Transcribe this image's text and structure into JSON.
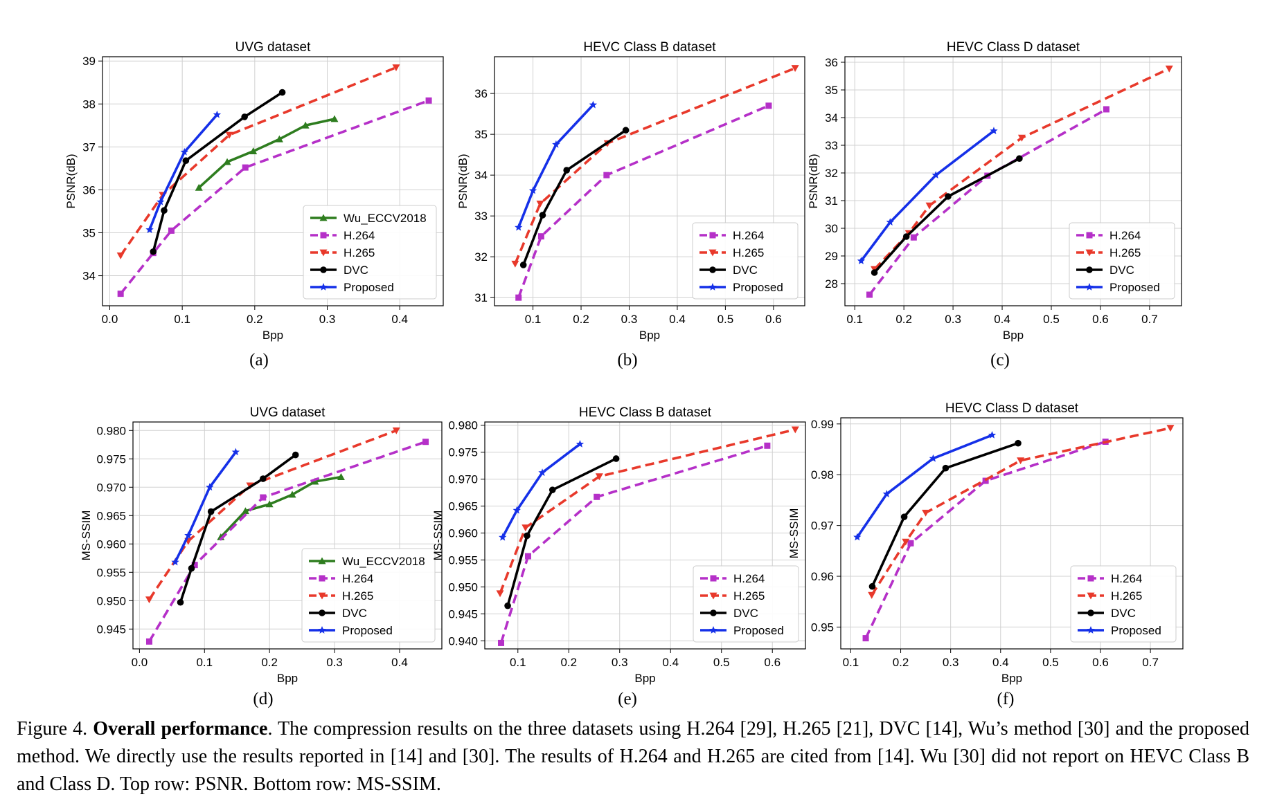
{
  "chart_data": [
    {
      "type": "line",
      "panel_label": "(a)",
      "title": "UVG dataset",
      "xlabel": "Bpp",
      "ylabel": "PSNR(dB)",
      "xlim": [
        -0.01,
        0.46
      ],
      "ylim": [
        33.3,
        39.1
      ],
      "xticks": [
        0.0,
        0.1,
        0.2,
        0.3,
        0.4
      ],
      "xtick_labels": [
        "0.0",
        "0.1",
        "0.2",
        "0.3",
        "0.4"
      ],
      "yticks": [
        34,
        35,
        36,
        37,
        38,
        39
      ],
      "ytick_labels": [
        "34",
        "35",
        "36",
        "37",
        "38",
        "39"
      ],
      "grid": true,
      "legend_position": "bottom-right",
      "series": [
        {
          "name": "Wu_ECCV2018",
          "color": "#2e7d1f",
          "marker": "triangle-up",
          "dash": "solid",
          "x": [
            0.123,
            0.162,
            0.198,
            0.234,
            0.27,
            0.31
          ],
          "y": [
            36.05,
            36.65,
            36.9,
            37.18,
            37.5,
            37.65
          ]
        },
        {
          "name": "H.264",
          "color": "#b530c8",
          "marker": "square",
          "dash": "dashed",
          "x": [
            0.015,
            0.06,
            0.085,
            0.187,
            0.44
          ],
          "y": [
            33.58,
            34.53,
            35.05,
            36.52,
            38.08
          ]
        },
        {
          "name": "H.265",
          "color": "#e8392b",
          "marker": "triangle-down",
          "dash": "dashed",
          "x": [
            0.015,
            0.073,
            0.165,
            0.395
          ],
          "y": [
            34.47,
            35.88,
            37.28,
            38.85
          ]
        },
        {
          "name": "DVC",
          "color": "#000000",
          "marker": "circle",
          "dash": "solid",
          "x": [
            0.06,
            0.075,
            0.105,
            0.186,
            0.238
          ],
          "y": [
            34.56,
            35.52,
            36.68,
            37.7,
            38.27
          ]
        },
        {
          "name": "Proposed",
          "color": "#1530e8",
          "marker": "star",
          "dash": "solid",
          "x": [
            0.055,
            0.07,
            0.103,
            0.148
          ],
          "y": [
            35.07,
            35.72,
            36.88,
            37.75
          ]
        }
      ]
    },
    {
      "type": "line",
      "panel_label": "(b)",
      "title": "HEVC Class B dataset",
      "xlabel": "Bpp",
      "ylabel": "PSNR(dB)",
      "xlim": [
        0.02,
        0.665
      ],
      "ylim": [
        30.8,
        36.9
      ],
      "xticks": [
        0.1,
        0.2,
        0.3,
        0.4,
        0.5,
        0.6
      ],
      "xtick_labels": [
        "0.1",
        "0.2",
        "0.3",
        "0.4",
        "0.5",
        "0.6"
      ],
      "yticks": [
        31,
        32,
        33,
        34,
        35,
        36
      ],
      "ytick_labels": [
        "31",
        "32",
        "33",
        "34",
        "35",
        "36"
      ],
      "grid": true,
      "legend_position": "bottom-right",
      "series": [
        {
          "name": "H.264",
          "color": "#b530c8",
          "marker": "square",
          "dash": "dashed",
          "x": [
            0.07,
            0.117,
            0.253,
            0.59
          ],
          "y": [
            31.0,
            32.5,
            34.0,
            35.7
          ]
        },
        {
          "name": "H.265",
          "color": "#e8392b",
          "marker": "triangle-down",
          "dash": "dashed",
          "x": [
            0.063,
            0.115,
            0.255,
            0.645
          ],
          "y": [
            31.83,
            33.3,
            34.78,
            36.62
          ]
        },
        {
          "name": "DVC",
          "color": "#000000",
          "marker": "circle",
          "dash": "solid",
          "x": [
            0.08,
            0.12,
            0.17,
            0.293
          ],
          "y": [
            31.8,
            33.02,
            34.12,
            35.1
          ]
        },
        {
          "name": "Proposed",
          "color": "#1530e8",
          "marker": "star",
          "dash": "solid",
          "x": [
            0.07,
            0.1,
            0.148,
            0.225
          ],
          "y": [
            32.72,
            33.62,
            34.75,
            35.72
          ]
        }
      ]
    },
    {
      "type": "line",
      "panel_label": "(c)",
      "title": "HEVC Class D dataset",
      "xlabel": "Bpp",
      "ylabel": "PSNR(dB)",
      "xlim": [
        0.08,
        0.765
      ],
      "ylim": [
        27.2,
        36.2
      ],
      "xticks": [
        0.1,
        0.2,
        0.3,
        0.4,
        0.5,
        0.6,
        0.7
      ],
      "xtick_labels": [
        "0.1",
        "0.2",
        "0.3",
        "0.4",
        "0.5",
        "0.6",
        "0.7"
      ],
      "yticks": [
        28,
        29,
        30,
        31,
        32,
        33,
        34,
        35,
        36
      ],
      "ytick_labels": [
        "28",
        "29",
        "30",
        "31",
        "32",
        "33",
        "34",
        "35",
        "36"
      ],
      "grid": true,
      "legend_position": "bottom-right",
      "series": [
        {
          "name": "H.264",
          "color": "#b530c8",
          "marker": "square",
          "dash": "dashed",
          "x": [
            0.13,
            0.22,
            0.37,
            0.612
          ],
          "y": [
            27.6,
            29.67,
            31.9,
            34.3
          ]
        },
        {
          "name": "H.265",
          "color": "#e8392b",
          "marker": "triangle-down",
          "dash": "dashed",
          "x": [
            0.14,
            0.21,
            0.252,
            0.44,
            0.74
          ],
          "y": [
            28.52,
            29.82,
            30.82,
            33.27,
            35.77
          ]
        },
        {
          "name": "DVC",
          "color": "#000000",
          "marker": "circle",
          "dash": "solid",
          "x": [
            0.14,
            0.205,
            0.29,
            0.435
          ],
          "y": [
            28.4,
            29.7,
            31.15,
            32.52
          ]
        },
        {
          "name": "Proposed",
          "color": "#1530e8",
          "marker": "star",
          "dash": "solid",
          "x": [
            0.113,
            0.172,
            0.265,
            0.383
          ],
          "y": [
            28.82,
            30.22,
            31.92,
            33.52
          ]
        }
      ]
    },
    {
      "type": "line",
      "panel_label": "(d)",
      "title": "UVG dataset",
      "xlabel": "Bpp",
      "ylabel": "MS-SSIM",
      "xlim": [
        -0.01,
        0.465
      ],
      "ylim": [
        0.9415,
        0.9815
      ],
      "xticks": [
        0.0,
        0.1,
        0.2,
        0.3,
        0.4
      ],
      "xtick_labels": [
        "0.0",
        "0.1",
        "0.2",
        "0.3",
        "0.4"
      ],
      "yticks": [
        0.945,
        0.95,
        0.955,
        0.96,
        0.965,
        0.97,
        0.975,
        0.98
      ],
      "ytick_labels": [
        "0.945",
        "0.950",
        "0.955",
        "0.960",
        "0.965",
        "0.970",
        "0.975",
        "0.980"
      ],
      "grid": true,
      "legend_position": "bottom-right",
      "series": [
        {
          "name": "Wu_ECCV2018",
          "color": "#2e7d1f",
          "marker": "triangle-up",
          "dash": "solid",
          "x": [
            0.125,
            0.163,
            0.2,
            0.235,
            0.27,
            0.31
          ],
          "y": [
            0.9612,
            0.9658,
            0.967,
            0.9687,
            0.971,
            0.9718
          ]
        },
        {
          "name": "H.264",
          "color": "#b530c8",
          "marker": "square",
          "dash": "dashed",
          "x": [
            0.015,
            0.085,
            0.19,
            0.44
          ],
          "y": [
            0.9428,
            0.9563,
            0.9682,
            0.978
          ]
        },
        {
          "name": "H.265",
          "color": "#e8392b",
          "marker": "triangle-down",
          "dash": "dashed",
          "x": [
            0.015,
            0.075,
            0.17,
            0.395
          ],
          "y": [
            0.9502,
            0.9605,
            0.9703,
            0.98
          ]
        },
        {
          "name": "DVC",
          "color": "#000000",
          "marker": "circle",
          "dash": "solid",
          "x": [
            0.063,
            0.08,
            0.11,
            0.19,
            0.24
          ],
          "y": [
            0.9497,
            0.9557,
            0.9657,
            0.9715,
            0.9757
          ]
        },
        {
          "name": "Proposed",
          "color": "#1530e8",
          "marker": "star",
          "dash": "solid",
          "x": [
            0.055,
            0.075,
            0.108,
            0.148
          ],
          "y": [
            0.9568,
            0.9615,
            0.97,
            0.9762
          ]
        }
      ]
    },
    {
      "type": "line",
      "panel_label": "(e)",
      "title": "HEVC Class B dataset",
      "xlabel": "Bpp",
      "ylabel": "MS-SSIM",
      "xlim": [
        0.035,
        0.665
      ],
      "ylim": [
        0.9385,
        0.9806
      ],
      "xticks": [
        0.1,
        0.2,
        0.3,
        0.4,
        0.5,
        0.6
      ],
      "xtick_labels": [
        "0.1",
        "0.2",
        "0.3",
        "0.4",
        "0.5",
        "0.6"
      ],
      "yticks": [
        0.94,
        0.945,
        0.95,
        0.955,
        0.96,
        0.965,
        0.97,
        0.975,
        0.98
      ],
      "ytick_labels": [
        "0.940",
        "0.945",
        "0.950",
        "0.955",
        "0.960",
        "0.965",
        "0.970",
        "0.975",
        "0.980"
      ],
      "grid": true,
      "legend_position": "bottom-right",
      "series": [
        {
          "name": "H.264",
          "color": "#b530c8",
          "marker": "square",
          "dash": "dashed",
          "x": [
            0.067,
            0.12,
            0.255,
            0.59
          ],
          "y": [
            0.9396,
            0.9557,
            0.9667,
            0.9762
          ]
        },
        {
          "name": "H.265",
          "color": "#e8392b",
          "marker": "triangle-down",
          "dash": "dashed",
          "x": [
            0.065,
            0.115,
            0.26,
            0.645
          ],
          "y": [
            0.9488,
            0.961,
            0.9705,
            0.9792
          ]
        },
        {
          "name": "DVC",
          "color": "#000000",
          "marker": "circle",
          "dash": "solid",
          "x": [
            0.08,
            0.118,
            0.168,
            0.293
          ],
          "y": [
            0.9465,
            0.9595,
            0.968,
            0.9738
          ]
        },
        {
          "name": "Proposed",
          "color": "#1530e8",
          "marker": "star",
          "dash": "solid",
          "x": [
            0.07,
            0.098,
            0.148,
            0.222
          ],
          "y": [
            0.9592,
            0.9642,
            0.9712,
            0.9765
          ]
        }
      ]
    },
    {
      "type": "line",
      "panel_label": "(f)",
      "title": "HEVC Class D dataset",
      "xlabel": "Bpp",
      "ylabel": "MS-SSIM",
      "xlim": [
        0.08,
        0.765
      ],
      "ylim": [
        0.9457,
        0.9912
      ],
      "xticks": [
        0.1,
        0.2,
        0.3,
        0.4,
        0.5,
        0.6,
        0.7
      ],
      "xtick_labels": [
        "0.1",
        "0.2",
        "0.3",
        "0.4",
        "0.5",
        "0.6",
        "0.7"
      ],
      "yticks": [
        0.95,
        0.96,
        0.97,
        0.98,
        0.99
      ],
      "ytick_labels": [
        "0.95",
        "0.96",
        "0.97",
        "0.98",
        "0.99"
      ],
      "grid": true,
      "legend_position": "bottom-right",
      "series": [
        {
          "name": "H.264",
          "color": "#b530c8",
          "marker": "square",
          "dash": "dashed",
          "x": [
            0.13,
            0.22,
            0.37,
            0.61
          ],
          "y": [
            0.9478,
            0.9665,
            0.9788,
            0.9865
          ]
        },
        {
          "name": "H.265",
          "color": "#e8392b",
          "marker": "triangle-down",
          "dash": "dashed",
          "x": [
            0.142,
            0.21,
            0.25,
            0.44,
            0.74
          ],
          "y": [
            0.9563,
            0.9668,
            0.9725,
            0.9828,
            0.9892
          ]
        },
        {
          "name": "DVC",
          "color": "#000000",
          "marker": "circle",
          "dash": "solid",
          "x": [
            0.143,
            0.207,
            0.29,
            0.435
          ],
          "y": [
            0.958,
            0.9717,
            0.9813,
            0.9862
          ]
        },
        {
          "name": "Proposed",
          "color": "#1530e8",
          "marker": "star",
          "dash": "solid",
          "x": [
            0.113,
            0.172,
            0.265,
            0.383
          ],
          "y": [
            0.9677,
            0.9762,
            0.9832,
            0.9878
          ]
        }
      ]
    }
  ],
  "caption": {
    "label": "Figure 4.",
    "bold": "Overall performance",
    "text": ". The compression results on the three datasets using H.264 [29], H.265 [21], DVC [14], Wu’s method [30] and the proposed method.  We directly use the results reported in [14] and [30].  The results of H.264 and H.265 are cited from [14]. Wu [30] did not report on HEVC Class B and Class D. Top row: PSNR. Bottom row: MS-SSIM."
  }
}
